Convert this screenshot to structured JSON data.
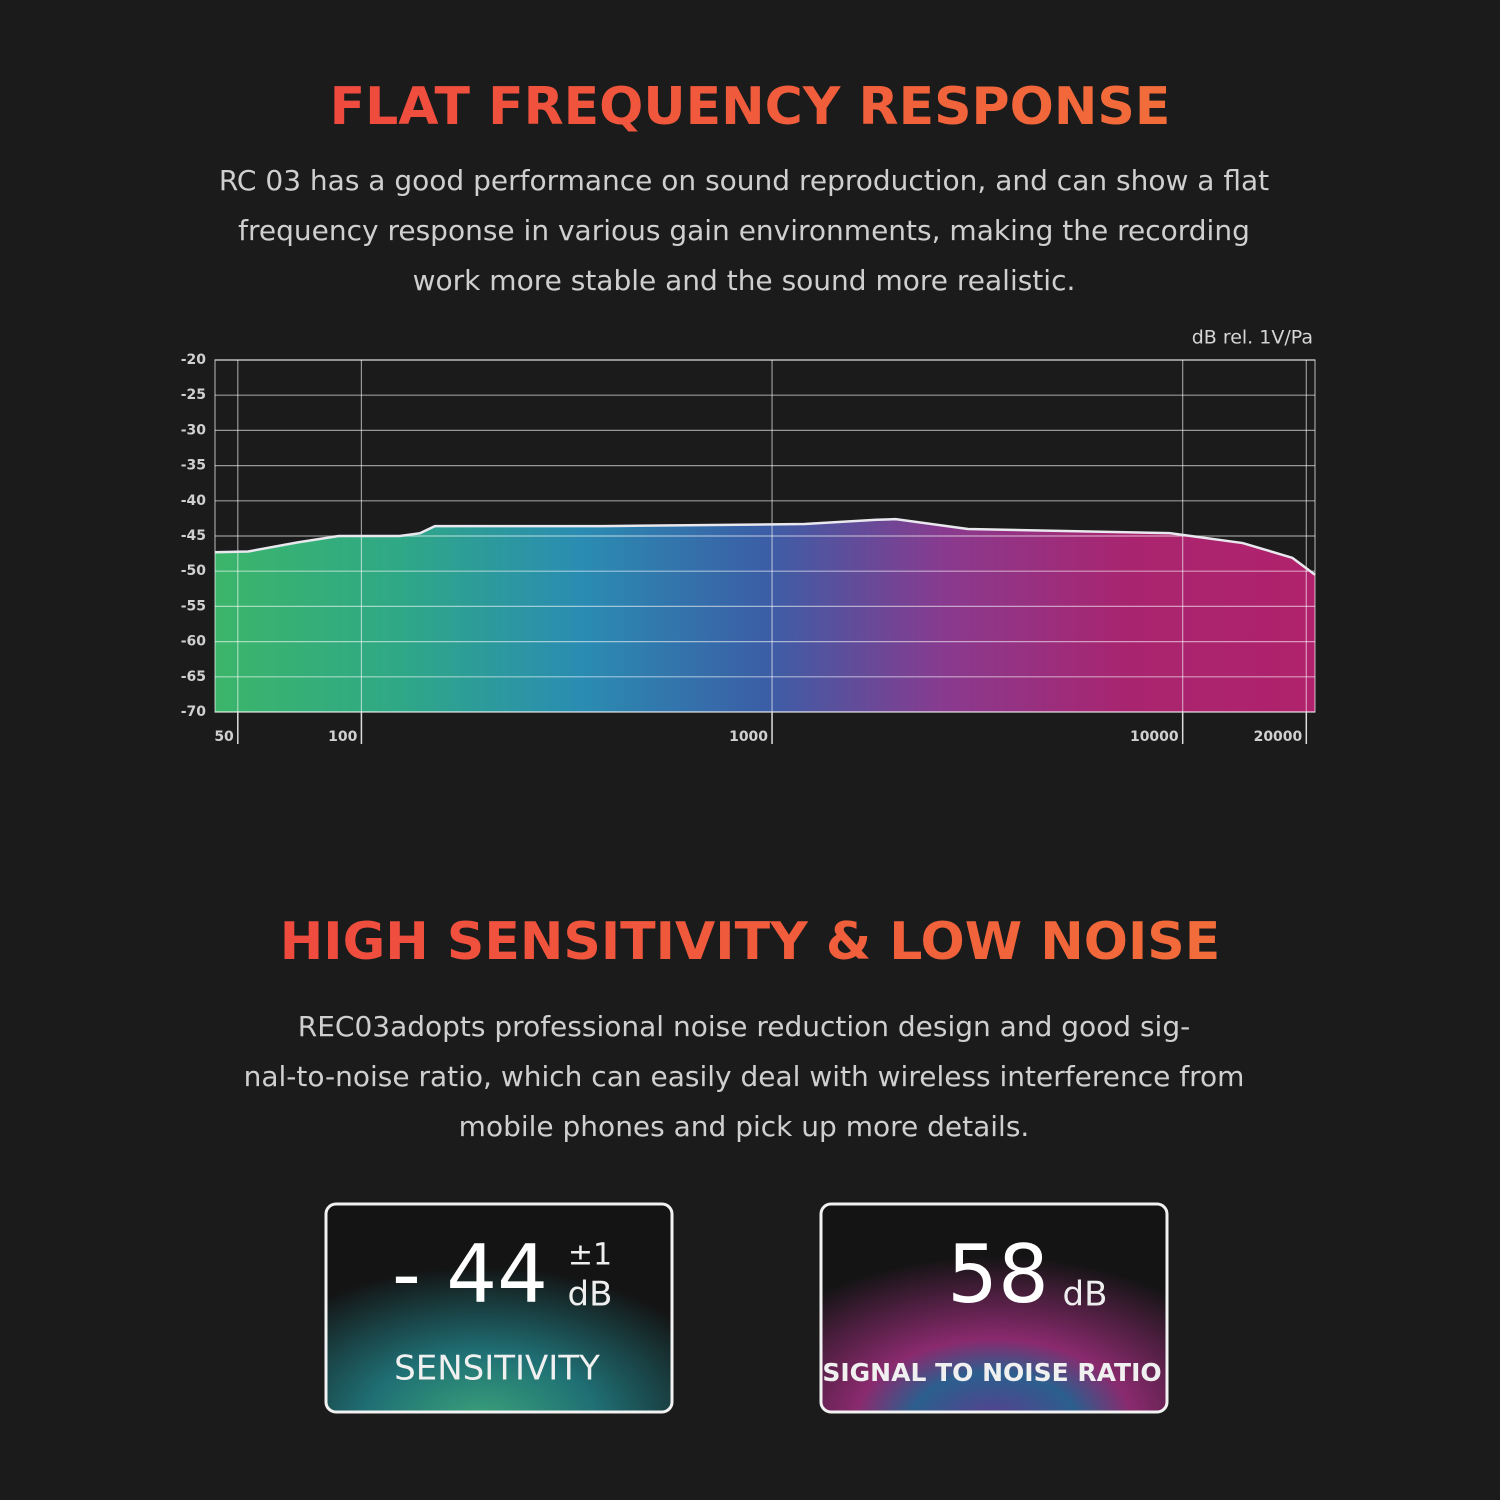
{
  "section1": {
    "title": "FLAT FREQUENCY RESPONSE",
    "paragraph": [
      "RC 03 has a good performance on sound reproduction, and can show a flat",
      "frequency response in various gain environments, making the recording",
      "work more stable and the sound more realistic."
    ]
  },
  "chart_data": {
    "type": "area",
    "y_label": "dB rel. 1V/Pa",
    "log_x": true,
    "grid": true,
    "x": [
      44,
      53,
      70,
      88,
      124,
      139,
      151,
      387,
      1200,
      1800,
      2000,
      3000,
      9300,
      14000,
      18500,
      21000
    ],
    "values": [
      -47.3,
      -47.2,
      -45.9,
      -45,
      -45,
      -44.6,
      -43.6,
      -43.6,
      -43.3,
      -42.7,
      -42.6,
      -44,
      -44.6,
      -46,
      -48.1,
      -50.5
    ],
    "xlim": [
      44,
      21000
    ],
    "xticks": [
      50,
      100,
      1000,
      10000,
      20000
    ],
    "ylim": [
      -70,
      -20
    ],
    "yticks": [
      -20,
      -25,
      -30,
      -35,
      -40,
      -45,
      -50,
      -55,
      -60,
      -65,
      -70
    ],
    "line_color": "#e8e8ee",
    "fill_colors": [
      "#3cb56a",
      "#2fa886",
      "#2a8cb2",
      "#3b5ea6",
      "#8a3a8e",
      "#a9246f",
      "#b0226c"
    ]
  },
  "section2": {
    "title": "HIGH SENSITIVITY & LOW NOISE",
    "paragraph": [
      "REC03adopts professional noise reduction design and good sig-",
      "nal-to-noise ratio, which can easily deal with wireless interference from",
      "mobile phones and pick up more details."
    ]
  },
  "stats": [
    {
      "value": "- 44",
      "tolerance": "±1",
      "unit": "dB",
      "label": "SENSITIVITY"
    },
    {
      "value": "58",
      "unit": "dB",
      "label": "SIGNAL TO NOISE RATIO"
    }
  ]
}
